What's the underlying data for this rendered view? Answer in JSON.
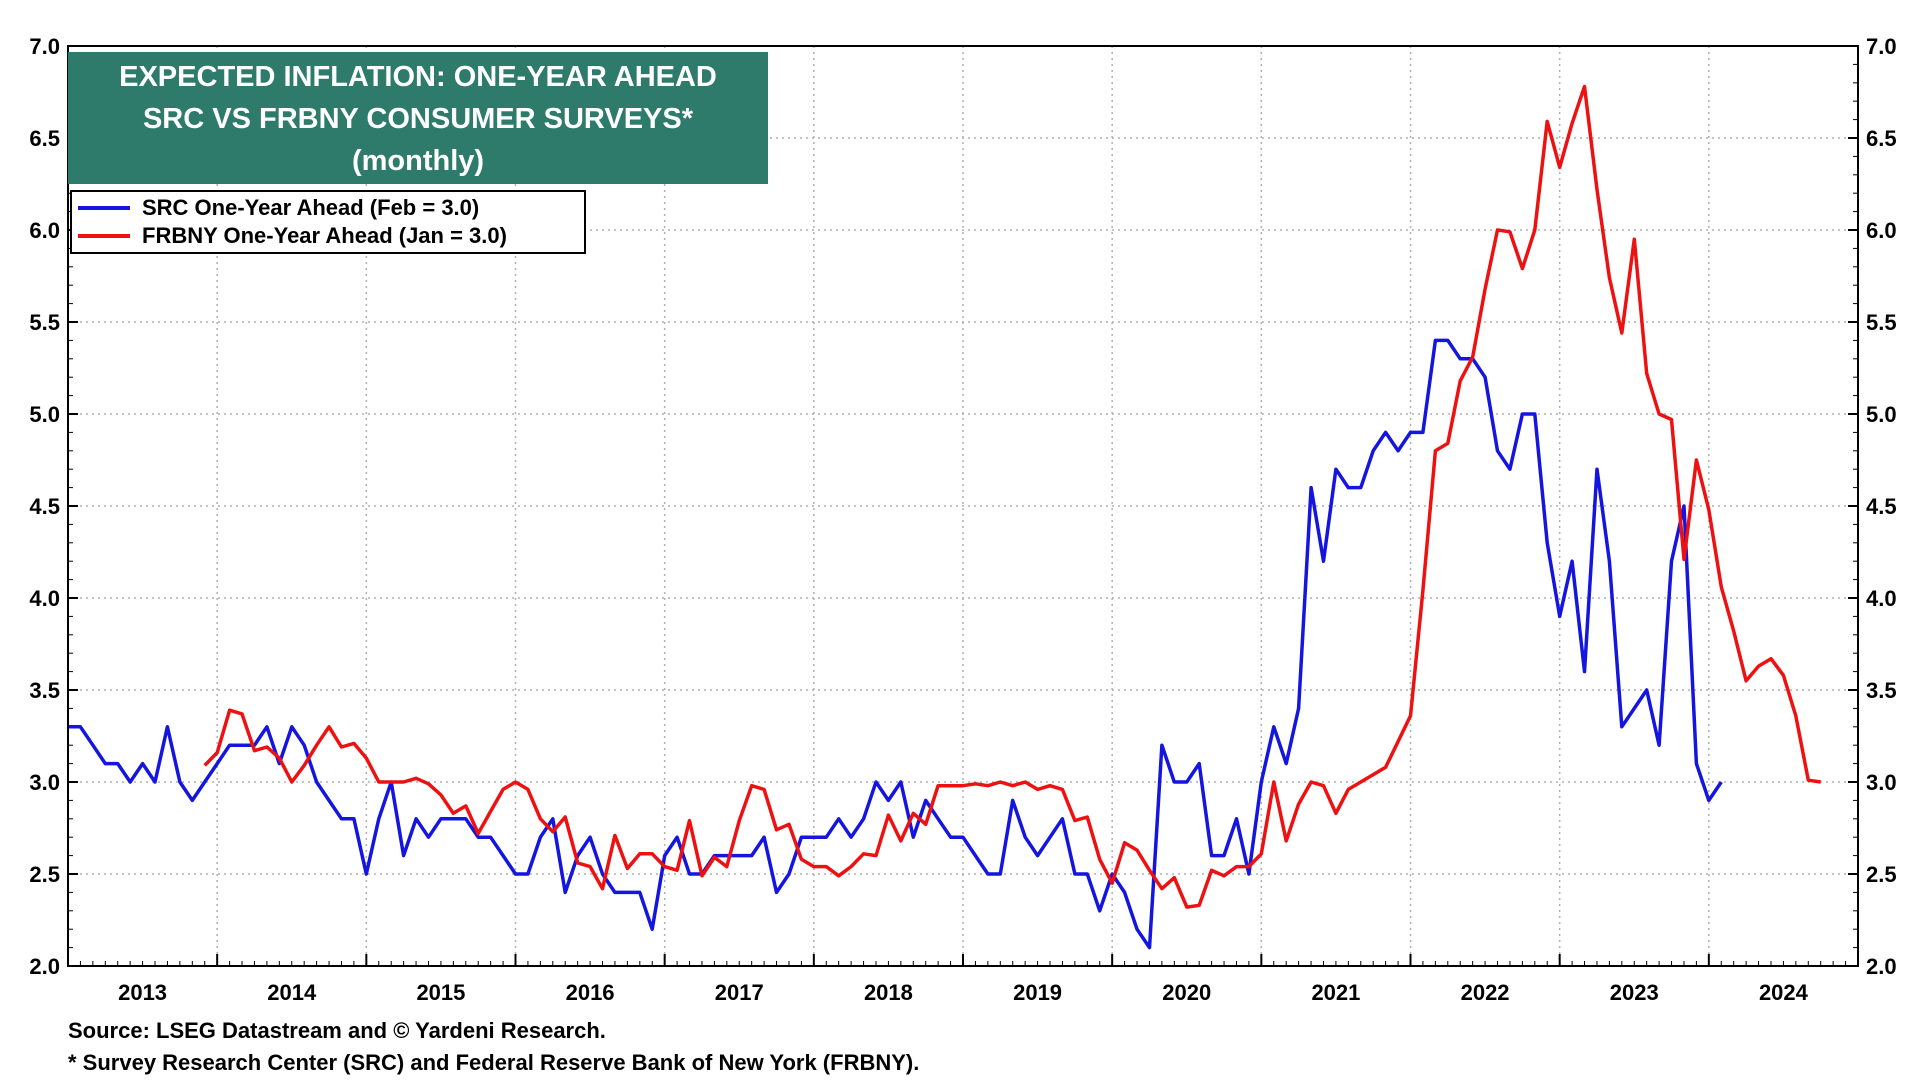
{
  "title": {
    "line1": "EXPECTED INFLATION: ONE-YEAR AHEAD",
    "line2": "SRC VS FRBNY CONSUMER SURVEYS*",
    "line3": "(monthly)"
  },
  "colors": {
    "title_bg": "#2e7b6c",
    "src": "#1515e0",
    "frbny": "#ee1111",
    "grid": "#b0b0b0"
  },
  "footer": {
    "source": "Source: LSEG Datastream and © Yardeni Research.",
    "note": "* Survey Research Center (SRC) and Federal Reserve Bank of New York (FRBNY)."
  },
  "chart_data": {
    "type": "line",
    "title": "EXPECTED INFLATION: ONE-YEAR AHEAD — SRC VS FRBNY CONSUMER SURVEYS* (monthly)",
    "xlabel": "",
    "ylabel": "",
    "ylim": [
      2.0,
      7.0
    ],
    "yticks": [
      "2.0",
      "2.5",
      "3.0",
      "3.5",
      "4.0",
      "4.5",
      "5.0",
      "5.5",
      "6.0",
      "6.5",
      "7.0"
    ],
    "xlim": [
      2012.5,
      2024.5
    ],
    "xtick_labels": [
      "2013",
      "2014",
      "2015",
      "2016",
      "2017",
      "2018",
      "2019",
      "2020",
      "2021",
      "2022",
      "2023",
      "2024"
    ],
    "grid": true,
    "legend_position": "top-left",
    "series": [
      {
        "name": "SRC One-Year Ahead (Feb = 3.0)",
        "start": "2012-07",
        "values": [
          3.3,
          3.3,
          3.2,
          3.1,
          3.1,
          3.0,
          3.1,
          3.0,
          3.3,
          3.0,
          2.9,
          3.0,
          3.1,
          3.2,
          3.2,
          3.2,
          3.3,
          3.1,
          3.3,
          3.2,
          3.0,
          2.9,
          2.8,
          2.8,
          2.5,
          2.8,
          3.0,
          2.6,
          2.8,
          2.7,
          2.8,
          2.8,
          2.8,
          2.7,
          2.7,
          2.6,
          2.5,
          2.5,
          2.7,
          2.8,
          2.4,
          2.6,
          2.7,
          2.5,
          2.4,
          2.4,
          2.4,
          2.2,
          2.6,
          2.7,
          2.5,
          2.5,
          2.6,
          2.6,
          2.6,
          2.6,
          2.7,
          2.4,
          2.5,
          2.7,
          2.7,
          2.7,
          2.8,
          2.7,
          2.8,
          3.0,
          2.9,
          3.0,
          2.7,
          2.9,
          2.8,
          2.7,
          2.7,
          2.6,
          2.5,
          2.5,
          2.9,
          2.7,
          2.6,
          2.7,
          2.8,
          2.5,
          2.5,
          2.3,
          2.5,
          2.4,
          2.2,
          2.1,
          3.2,
          3.0,
          3.0,
          3.1,
          2.6,
          2.6,
          2.8,
          2.5,
          3.0,
          3.3,
          3.1,
          3.4,
          4.6,
          4.2,
          4.7,
          4.6,
          4.6,
          4.8,
          4.9,
          4.8,
          4.9,
          4.9,
          5.4,
          5.4,
          5.3,
          5.3,
          5.2,
          4.8,
          4.7,
          5.0,
          5.0,
          4.3,
          3.9,
          4.2,
          3.6,
          4.7,
          4.2,
          3.3,
          3.4,
          3.5,
          3.2,
          4.2,
          4.5,
          3.1,
          2.9,
          3.0
        ]
      },
      {
        "name": "FRBNY One-Year Ahead (Jan = 3.0)",
        "start": "2013-06",
        "values": [
          3.09,
          3.16,
          3.39,
          3.37,
          3.17,
          3.19,
          3.13,
          3.0,
          3.09,
          3.2,
          3.3,
          3.19,
          3.21,
          3.13,
          3.0,
          3.0,
          3.0,
          3.02,
          2.99,
          2.93,
          2.83,
          2.87,
          2.72,
          2.84,
          2.96,
          3.0,
          2.96,
          2.8,
          2.73,
          2.81,
          2.56,
          2.54,
          2.42,
          2.71,
          2.53,
          2.61,
          2.61,
          2.54,
          2.52,
          2.79,
          2.49,
          2.59,
          2.54,
          2.79,
          2.98,
          2.96,
          2.74,
          2.77,
          2.58,
          2.54,
          2.54,
          2.49,
          2.54,
          2.61,
          2.6,
          2.82,
          2.68,
          2.83,
          2.77,
          2.98,
          2.98,
          2.98,
          2.99,
          2.98,
          3.0,
          2.98,
          3.0,
          2.96,
          2.98,
          2.96,
          2.79,
          2.81,
          2.58,
          2.45,
          2.67,
          2.63,
          2.52,
          2.42,
          2.48,
          2.32,
          2.33,
          2.52,
          2.49,
          2.54,
          2.54,
          2.61,
          3.0,
          2.68,
          2.88,
          3.0,
          2.98,
          2.83,
          2.96,
          3.0,
          3.04,
          3.08,
          3.22,
          3.36,
          4.04,
          4.8,
          4.84,
          5.18,
          5.31,
          5.68,
          6.0,
          5.99,
          5.79,
          6.0,
          6.59,
          6.34,
          6.58,
          6.78,
          6.22,
          5.74,
          5.44,
          5.95,
          5.22,
          5.0,
          4.97,
          4.21,
          4.75,
          4.48,
          4.06,
          3.82,
          3.55,
          3.63,
          3.67,
          3.58,
          3.36,
          3.01,
          3.0
        ]
      }
    ]
  }
}
